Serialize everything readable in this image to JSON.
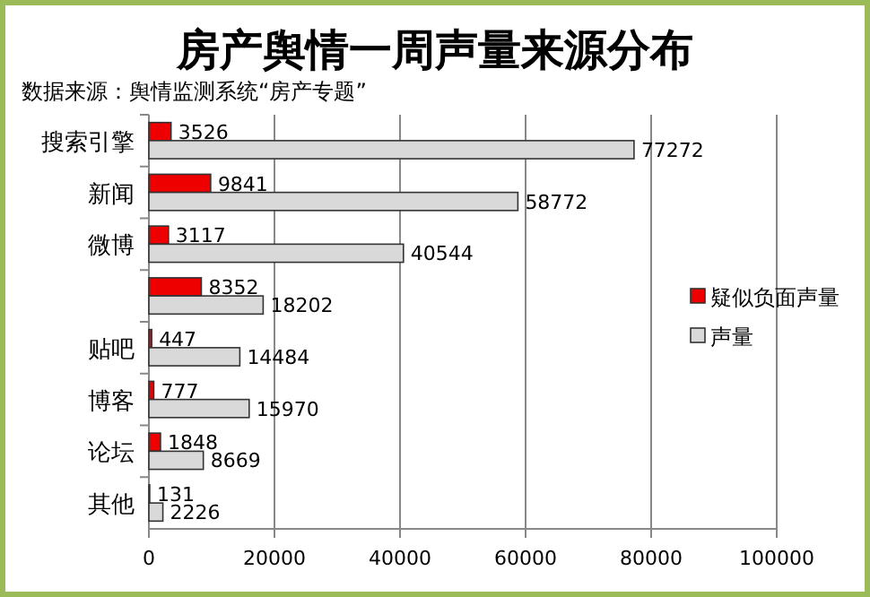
{
  "chart_data": {
    "type": "bar",
    "orientation": "horizontal",
    "title": "房产舆情一周声量来源分布",
    "subtitle": "数据来源：舆情监测系统“房产专题”",
    "categories": [
      "搜索引擎",
      "新闻",
      "微博",
      null,
      "贴吧",
      "博客",
      "论坛",
      "其他"
    ],
    "series": [
      {
        "name": "疑似负面声量",
        "color": "#ee0000",
        "values": [
          3526,
          9841,
          3117,
          8352,
          447,
          777,
          1848,
          131
        ]
      },
      {
        "name": "声量",
        "color": "#d9d9d9",
        "values": [
          77272,
          58772,
          40544,
          18202,
          14484,
          15970,
          8669,
          2226
        ]
      }
    ],
    "xlim": [
      0,
      100000
    ],
    "xticks": [
      0,
      20000,
      40000,
      60000,
      80000,
      100000
    ],
    "grid": "x",
    "legend": "right",
    "data_labels": true
  }
}
